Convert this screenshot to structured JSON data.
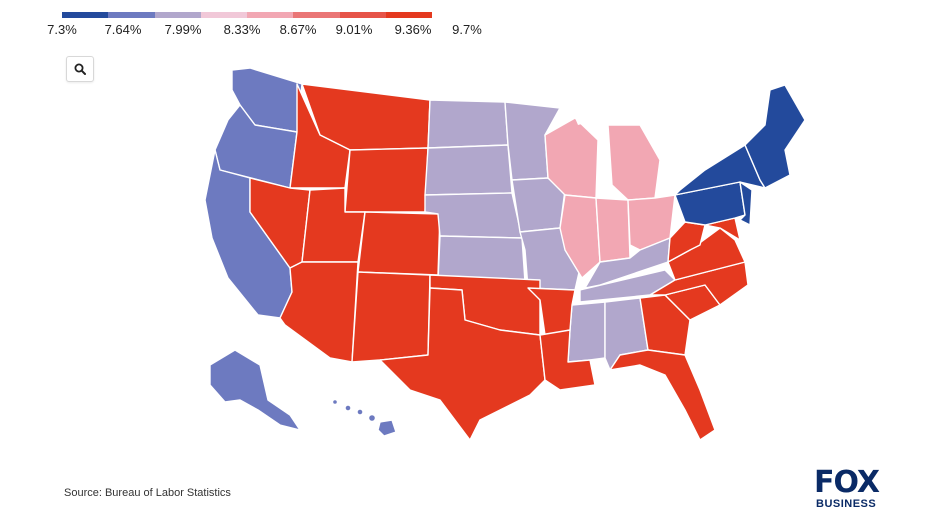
{
  "legend": {
    "labels": [
      "7.3%",
      "7.64%",
      "7.99%",
      "8.33%",
      "8.67%",
      "9.01%",
      "9.36%",
      "9.7%"
    ],
    "colors": [
      "#234a9c",
      "#6d7ac0",
      "#b1a7cc",
      "#f1c8d8",
      "#f2a7b3",
      "#ea7676",
      "#e65448",
      "#e4391f"
    ]
  },
  "map": {
    "search_icon": "search-icon",
    "region_colors": {
      "west_coast": "#6d7ac0",
      "west_interior": "#e4391f",
      "north_central": "#b1a7cc",
      "great_lakes": "#f2a7b3",
      "south": "#e4391f",
      "deep_south_inland": "#b1a7cc",
      "northeast": "#234a9c",
      "alaska": "#6d7ac0",
      "hawaii": "#6d7ac0"
    }
  },
  "footer": {
    "source": "Source: Bureau of Labor Statistics",
    "logo_main": "FOX",
    "logo_sub": "BUSINESS"
  }
}
